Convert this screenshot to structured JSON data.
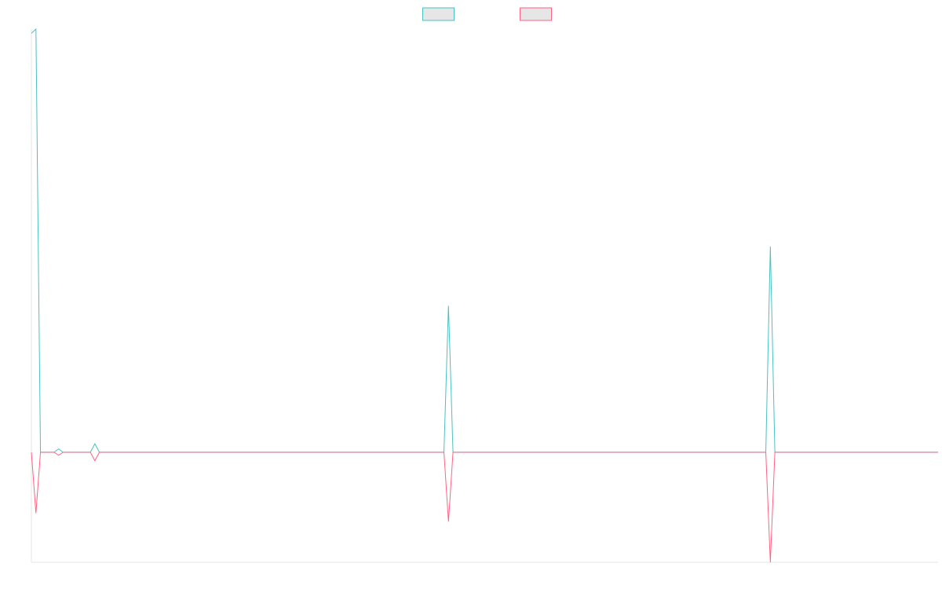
{
  "chart_data": {
    "type": "line",
    "x": [
      0,
      1,
      2,
      5,
      6,
      7,
      13,
      14,
      15,
      91,
      92,
      93,
      162,
      163,
      164,
      200
    ],
    "xlim": [
      0,
      200
    ],
    "ylim": [
      -26,
      100
    ],
    "series": [
      {
        "color": "#4bc0c0",
        "values": [
          99,
          100,
          0,
          0,
          0.8,
          0,
          0,
          2,
          0,
          0,
          34.6,
          0,
          0,
          48.6,
          0,
          0
        ]
      },
      {
        "color": "#ff6384",
        "values": [
          0,
          -14.4,
          0,
          0,
          -0.7,
          0,
          0,
          -2,
          0,
          0,
          -16.4,
          0,
          0,
          -26,
          0,
          0
        ]
      }
    ],
    "legend": "top"
  }
}
